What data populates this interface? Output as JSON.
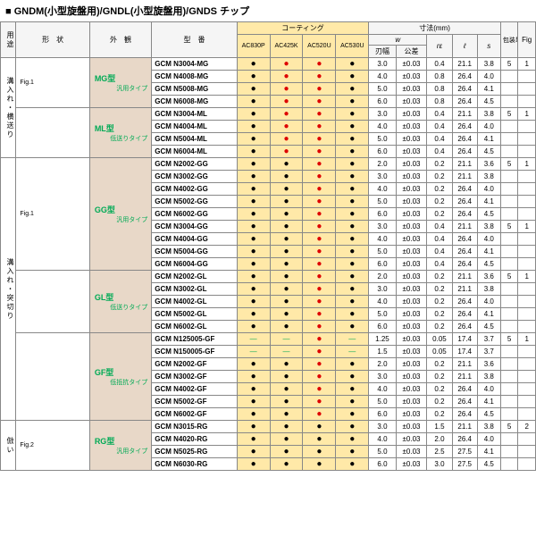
{
  "title": "■ GNDM(小型旋盤用)/GNDL(小型旋盤用)/GNDS チップ",
  "headers": {
    "use": "用途",
    "shape": "形　状",
    "appear": "外　観",
    "model": "型　番",
    "coating": "コーティング",
    "coat_cols": [
      "AC830P",
      "AC425K",
      "AC520U",
      "AC530U"
    ],
    "dim": "寸法(mm)",
    "dim_cols": [
      "w",
      "",
      "rε",
      "ℓ",
      "s"
    ],
    "dim_sub": [
      "刃幅",
      "公差",
      "",
      "",
      ""
    ],
    "pack": "包装単位",
    "fig": "Fig"
  },
  "use_labels": [
    "溝入れ・横送り",
    "溝入れ・突切り",
    "倣い"
  ],
  "groups": [
    {
      "type": "MG型",
      "tag": "汎用タイプ",
      "use": 0,
      "fig": "Fig.1",
      "rows": [
        [
          "GCM N3004-MG",
          "k",
          "r",
          "r",
          "k",
          "3.0",
          "±0.03",
          "0.4",
          "21.1",
          "3.8",
          "5",
          "1"
        ],
        [
          "GCM N4008-MG",
          "k",
          "r",
          "r",
          "k",
          "4.0",
          "±0.03",
          "0.8",
          "26.4",
          "4.0",
          "",
          ""
        ],
        [
          "GCM N5008-MG",
          "k",
          "r",
          "r",
          "k",
          "5.0",
          "±0.03",
          "0.8",
          "26.4",
          "4.1",
          "",
          ""
        ],
        [
          "GCM N6008-MG",
          "k",
          "r",
          "r",
          "k",
          "6.0",
          "±0.03",
          "0.8",
          "26.4",
          "4.5",
          "",
          ""
        ]
      ]
    },
    {
      "type": "ML型",
      "tag": "低送りタイプ",
      "use": 0,
      "rows": [
        [
          "GCM N3004-ML",
          "k",
          "r",
          "r",
          "k",
          "3.0",
          "±0.03",
          "0.4",
          "21.1",
          "3.8",
          "5",
          "1"
        ],
        [
          "GCM N4004-ML",
          "k",
          "r",
          "r",
          "k",
          "4.0",
          "±0.03",
          "0.4",
          "26.4",
          "4.0",
          "",
          ""
        ],
        [
          "GCM N5004-ML",
          "k",
          "r",
          "r",
          "k",
          "5.0",
          "±0.03",
          "0.4",
          "26.4",
          "4.1",
          "",
          ""
        ],
        [
          "GCM N6004-ML",
          "k",
          "r",
          "r",
          "k",
          "6.0",
          "±0.03",
          "0.4",
          "26.4",
          "4.5",
          "",
          ""
        ]
      ]
    },
    {
      "type": "GG型",
      "tag": "汎用タイプ",
      "use": 1,
      "fig": "Fig.1",
      "rows": [
        [
          "GCM N2002-GG",
          "k",
          "k",
          "r",
          "k",
          "2.0",
          "±0.03",
          "0.2",
          "21.1",
          "3.6",
          "5",
          "1"
        ],
        [
          "GCM N3002-GG",
          "k",
          "k",
          "r",
          "k",
          "3.0",
          "±0.03",
          "0.2",
          "21.1",
          "3.8",
          "",
          ""
        ],
        [
          "GCM N4002-GG",
          "k",
          "k",
          "r",
          "k",
          "4.0",
          "±0.03",
          "0.2",
          "26.4",
          "4.0",
          "",
          ""
        ],
        [
          "GCM N5002-GG",
          "k",
          "k",
          "r",
          "k",
          "5.0",
          "±0.03",
          "0.2",
          "26.4",
          "4.1",
          "",
          ""
        ],
        [
          "GCM N6002-GG",
          "k",
          "k",
          "r",
          "k",
          "6.0",
          "±0.03",
          "0.2",
          "26.4",
          "4.5",
          "",
          ""
        ],
        [
          "GCM N3004-GG",
          "k",
          "k",
          "r",
          "k",
          "3.0",
          "±0.03",
          "0.4",
          "21.1",
          "3.8",
          "5",
          "1"
        ],
        [
          "GCM N4004-GG",
          "k",
          "k",
          "r",
          "k",
          "4.0",
          "±0.03",
          "0.4",
          "26.4",
          "4.0",
          "",
          ""
        ],
        [
          "GCM N5004-GG",
          "k",
          "k",
          "r",
          "k",
          "5.0",
          "±0.03",
          "0.4",
          "26.4",
          "4.1",
          "",
          ""
        ],
        [
          "GCM N6004-GG",
          "k",
          "k",
          "r",
          "k",
          "6.0",
          "±0.03",
          "0.4",
          "26.4",
          "4.5",
          "",
          ""
        ]
      ]
    },
    {
      "type": "GL型",
      "tag": "低送りタイプ",
      "use": 1,
      "rows": [
        [
          "GCM N2002-GL",
          "k",
          "k",
          "r",
          "k",
          "2.0",
          "±0.03",
          "0.2",
          "21.1",
          "3.6",
          "5",
          "1"
        ],
        [
          "GCM N3002-GL",
          "k",
          "k",
          "r",
          "k",
          "3.0",
          "±0.03",
          "0.2",
          "21.1",
          "3.8",
          "",
          ""
        ],
        [
          "GCM N4002-GL",
          "k",
          "k",
          "r",
          "k",
          "4.0",
          "±0.03",
          "0.2",
          "26.4",
          "4.0",
          "",
          ""
        ],
        [
          "GCM N5002-GL",
          "k",
          "k",
          "r",
          "k",
          "5.0",
          "±0.03",
          "0.2",
          "26.4",
          "4.1",
          "",
          ""
        ],
        [
          "GCM N6002-GL",
          "k",
          "k",
          "r",
          "k",
          "6.0",
          "±0.03",
          "0.2",
          "26.4",
          "4.5",
          "",
          ""
        ]
      ]
    },
    {
      "type": "GF型",
      "tag": "低抵抗タイプ",
      "use": 1,
      "rows": [
        [
          "GCM N125005-GF",
          "-",
          "-",
          "r",
          "-",
          "1.25",
          "±0.03",
          "0.05",
          "17.4",
          "3.7",
          "5",
          "1"
        ],
        [
          "GCM N150005-GF",
          "-",
          "-",
          "r",
          "-",
          "1.5",
          "±0.03",
          "0.05",
          "17.4",
          "3.7",
          "",
          ""
        ],
        [
          "GCM N2002-GF",
          "k",
          "k",
          "r",
          "k",
          "2.0",
          "±0.03",
          "0.2",
          "21.1",
          "3.6",
          "",
          ""
        ],
        [
          "GCM N3002-GF",
          "k",
          "k",
          "r",
          "k",
          "3.0",
          "±0.03",
          "0.2",
          "21.1",
          "3.8",
          "",
          ""
        ],
        [
          "GCM N4002-GF",
          "k",
          "k",
          "r",
          "k",
          "4.0",
          "±0.03",
          "0.2",
          "26.4",
          "4.0",
          "",
          ""
        ],
        [
          "GCM N5002-GF",
          "k",
          "k",
          "r",
          "k",
          "5.0",
          "±0.03",
          "0.2",
          "26.4",
          "4.1",
          "",
          ""
        ],
        [
          "GCM N6002-GF",
          "k",
          "k",
          "r",
          "k",
          "6.0",
          "±0.03",
          "0.2",
          "26.4",
          "4.5",
          "",
          ""
        ]
      ]
    },
    {
      "type": "RG型",
      "tag": "汎用タイプ",
      "use": 2,
      "fig": "Fig.2",
      "rows": [
        [
          "GCM N3015-RG",
          "k",
          "k",
          "k",
          "k",
          "3.0",
          "±0.03",
          "1.5",
          "21.1",
          "3.8",
          "5",
          "2"
        ],
        [
          "GCM N4020-RG",
          "k",
          "k",
          "k",
          "k",
          "4.0",
          "±0.03",
          "2.0",
          "26.4",
          "4.0",
          "",
          ""
        ],
        [
          "GCM N5025-RG",
          "k",
          "k",
          "k",
          "k",
          "5.0",
          "±0.03",
          "2.5",
          "27.5",
          "4.1",
          "",
          ""
        ],
        [
          "GCM N6030-RG",
          "k",
          "k",
          "k",
          "k",
          "6.0",
          "±0.03",
          "3.0",
          "27.5",
          "4.5",
          "",
          ""
        ]
      ]
    }
  ]
}
